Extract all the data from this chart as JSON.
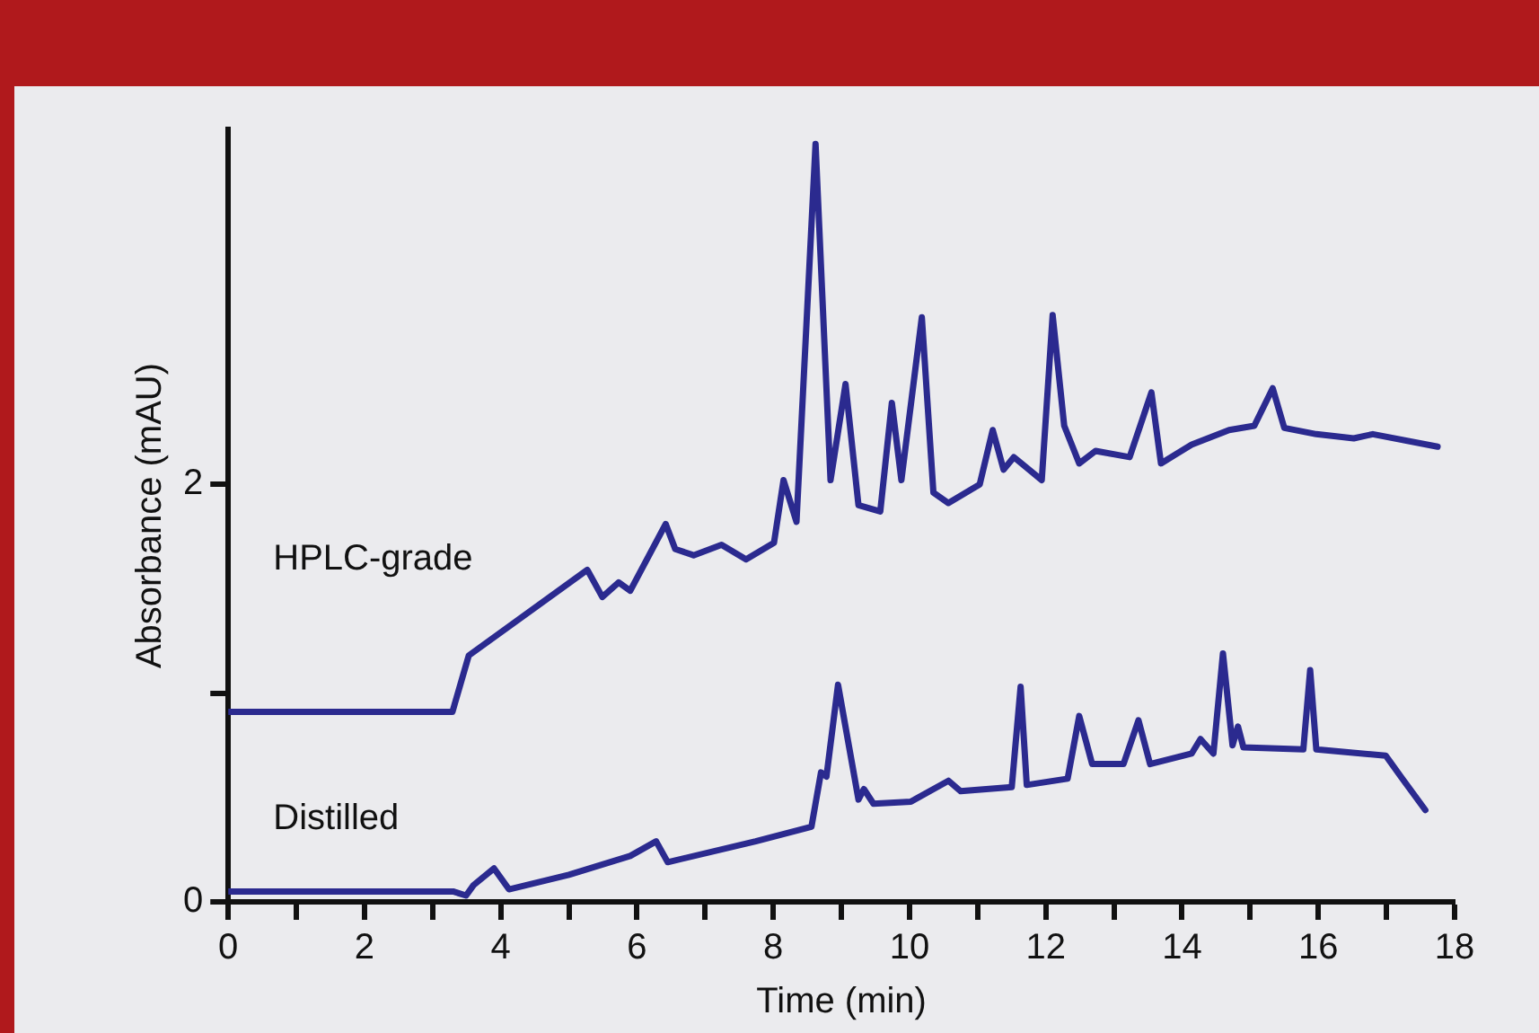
{
  "chart_data": {
    "type": "line",
    "xlabel": "Time (min)",
    "ylabel": "Absorbance (mAU)",
    "xlim": [
      0,
      18
    ],
    "ylim": [
      0,
      3.7
    ],
    "xticks": [
      0,
      {
        "value": 1,
        "label": null
      },
      2,
      {
        "value": 3,
        "label": null
      },
      4,
      {
        "value": 5,
        "label": null
      },
      6,
      {
        "value": 7,
        "label": null
      },
      8,
      {
        "value": 9,
        "label": null
      },
      10,
      {
        "value": 11,
        "label": null
      },
      12,
      {
        "value": 13,
        "label": null
      },
      14,
      {
        "value": 15,
        "label": null
      },
      16,
      {
        "value": 17,
        "label": null
      },
      18
    ],
    "yticks": [
      0,
      {
        "value": 1,
        "label": null
      },
      2
    ],
    "grid": false,
    "legend": false,
    "marker": "none",
    "line_style": "solid",
    "series": [
      {
        "name": "HPLC-grade",
        "color": "#2b2a8f",
        "x": [
          0,
          3.29,
          3.53,
          5.27,
          5.49,
          5.73,
          5.9,
          6.42,
          6.56,
          6.83,
          7.24,
          7.6,
          8.01,
          8.15,
          8.34,
          8.62,
          8.84,
          9.06,
          9.25,
          9.57,
          9.74,
          9.88,
          10.18,
          10.35,
          10.57,
          11.03,
          11.22,
          11.38,
          11.53,
          11.94,
          12.1,
          12.27,
          12.49,
          12.73,
          13.23,
          13.55,
          13.69,
          14.14,
          14.69,
          15.06,
          15.33,
          15.5,
          15.97,
          16.52,
          16.8,
          17.75
        ],
        "values": [
          0.91,
          0.91,
          1.18,
          1.59,
          1.46,
          1.53,
          1.49,
          1.81,
          1.69,
          1.66,
          1.71,
          1.64,
          1.72,
          2.02,
          1.82,
          3.63,
          2.02,
          2.48,
          1.9,
          1.87,
          2.39,
          2.02,
          2.8,
          1.96,
          1.91,
          2.0,
          2.26,
          2.07,
          2.13,
          2.02,
          2.81,
          2.28,
          2.1,
          2.16,
          2.13,
          2.44,
          2.1,
          2.19,
          2.26,
          2.28,
          2.46,
          2.27,
          2.24,
          2.22,
          2.24,
          2.18
        ]
      },
      {
        "name": "Distilled",
        "color": "#2b2a8f",
        "x": [
          0,
          3.3,
          3.49,
          3.6,
          3.9,
          4.12,
          5.0,
          5.9,
          6.28,
          6.45,
          7.74,
          8.56,
          8.7,
          8.78,
          8.95,
          9.25,
          9.33,
          9.47,
          10.02,
          10.57,
          10.75,
          11.5,
          11.63,
          11.72,
          12.32,
          12.49,
          12.68,
          13.14,
          13.36,
          13.53,
          14.14,
          14.27,
          14.46,
          14.6,
          14.74,
          14.82,
          14.9,
          15.78,
          15.88,
          15.97,
          16.99,
          17.21,
          17.57
        ],
        "values": [
          0.05,
          0.05,
          0.03,
          0.08,
          0.16,
          0.06,
          0.13,
          0.22,
          0.29,
          0.19,
          0.29,
          0.36,
          0.62,
          0.6,
          1.04,
          0.49,
          0.54,
          0.47,
          0.48,
          0.58,
          0.53,
          0.55,
          1.03,
          0.56,
          0.59,
          0.89,
          0.66,
          0.66,
          0.87,
          0.66,
          0.71,
          0.78,
          0.71,
          1.19,
          0.75,
          0.84,
          0.74,
          0.73,
          1.11,
          0.73,
          0.7,
          0.6,
          0.44
        ]
      }
    ]
  }
}
